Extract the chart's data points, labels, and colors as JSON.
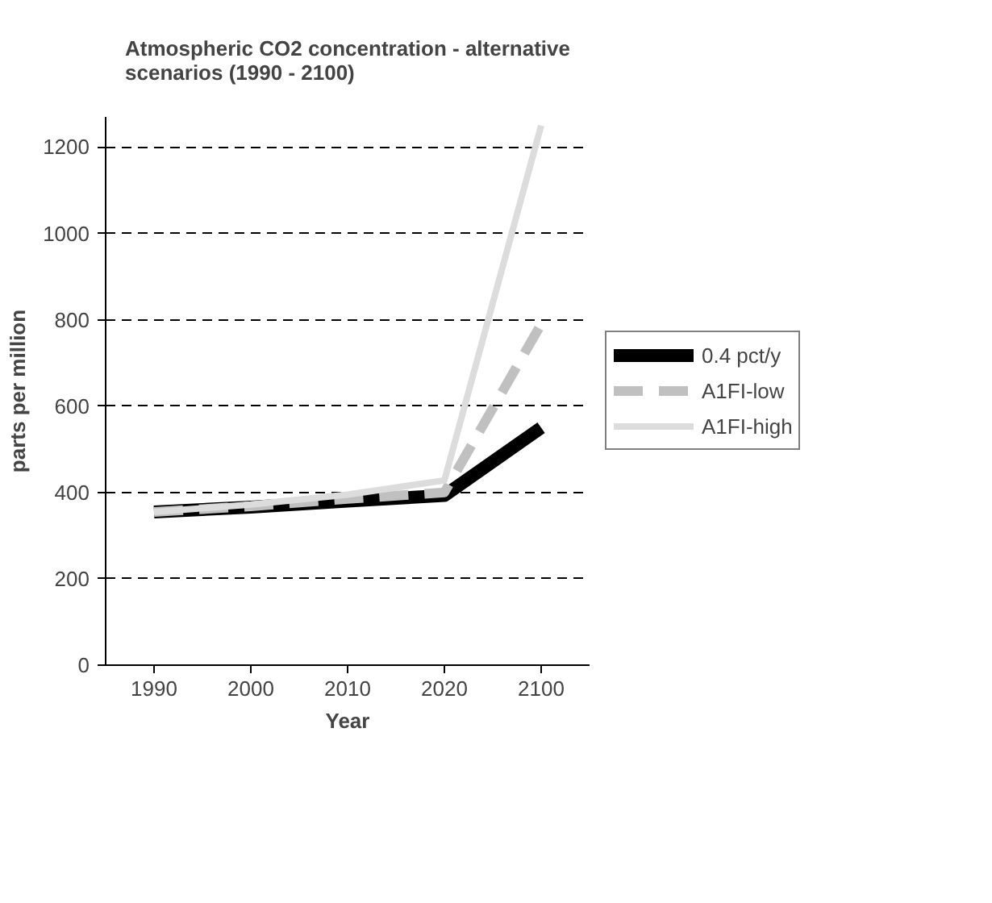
{
  "chart_data": {
    "type": "line",
    "title": "Atmospheric CO2 concentration - alternative scenarios (1990 - 2100)",
    "xlabel": "Year",
    "ylabel": "parts per million",
    "categories": [
      "1990",
      "2000",
      "2010",
      "2020",
      "2100"
    ],
    "series": [
      {
        "name": "0.4 pct/y",
        "color": "#000000",
        "line_style": "solid",
        "values": [
          355,
          366,
          380,
          393,
          550
        ]
      },
      {
        "name": "A1FI-low",
        "color": "#c0c0c0",
        "line_style": "dashed",
        "values": [
          355,
          368,
          385,
          400,
          790
        ]
      },
      {
        "name": "A1FI-high",
        "color": "#dcdcdc",
        "line_style": "solid",
        "values": [
          355,
          372,
          395,
          428,
          1250
        ]
      }
    ],
    "ylim": [
      0,
      1270
    ],
    "yticks": [
      0,
      200,
      400,
      600,
      800,
      1000,
      1200
    ],
    "grid": "y",
    "legend": "right",
    "marker": "none"
  }
}
